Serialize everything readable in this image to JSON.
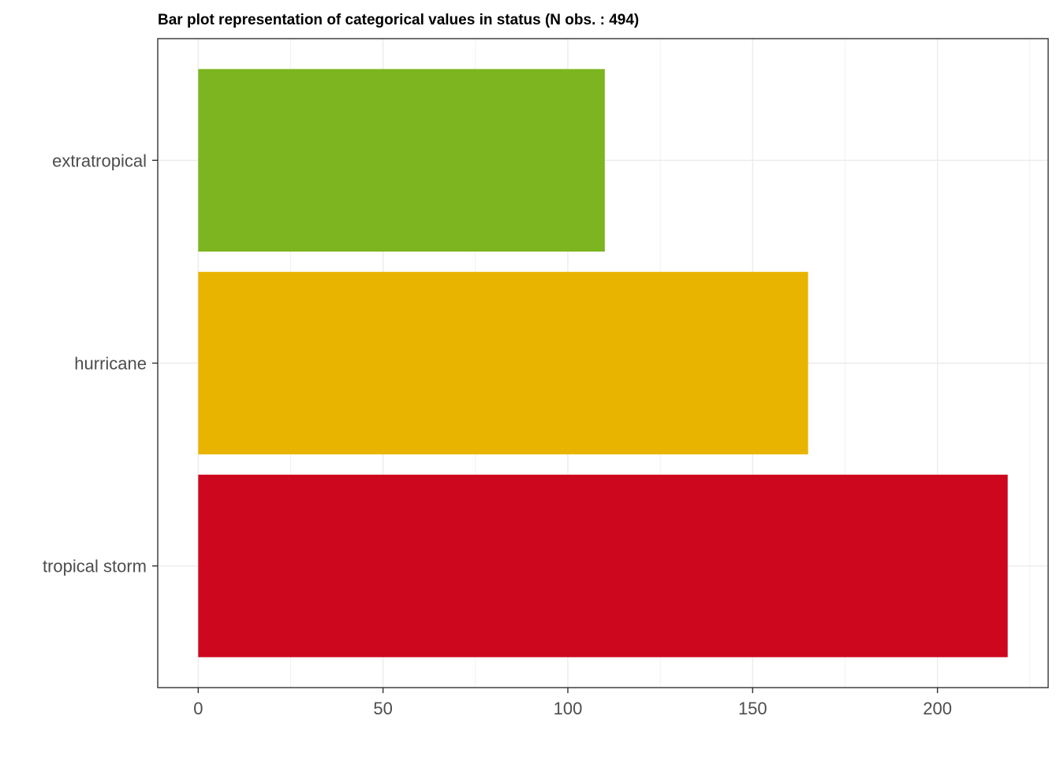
{
  "chart_data": {
    "type": "bar",
    "orientation": "horizontal",
    "title": "Bar plot representation of categorical values in status (N obs. : 494)",
    "xlabel": "",
    "ylabel": "",
    "categories": [
      "extratropical",
      "hurricane",
      "tropical storm"
    ],
    "values": [
      110,
      165,
      219
    ],
    "colors": [
      "#7cb51f",
      "#e8b400",
      "#cd071e"
    ],
    "xlim": [
      -10.95,
      229.95
    ],
    "x_ticks": [
      0,
      50,
      100,
      150,
      200
    ],
    "x_tick_labels": [
      "0",
      "50",
      "100",
      "150",
      "200"
    ],
    "grid": true,
    "legend": "none"
  }
}
